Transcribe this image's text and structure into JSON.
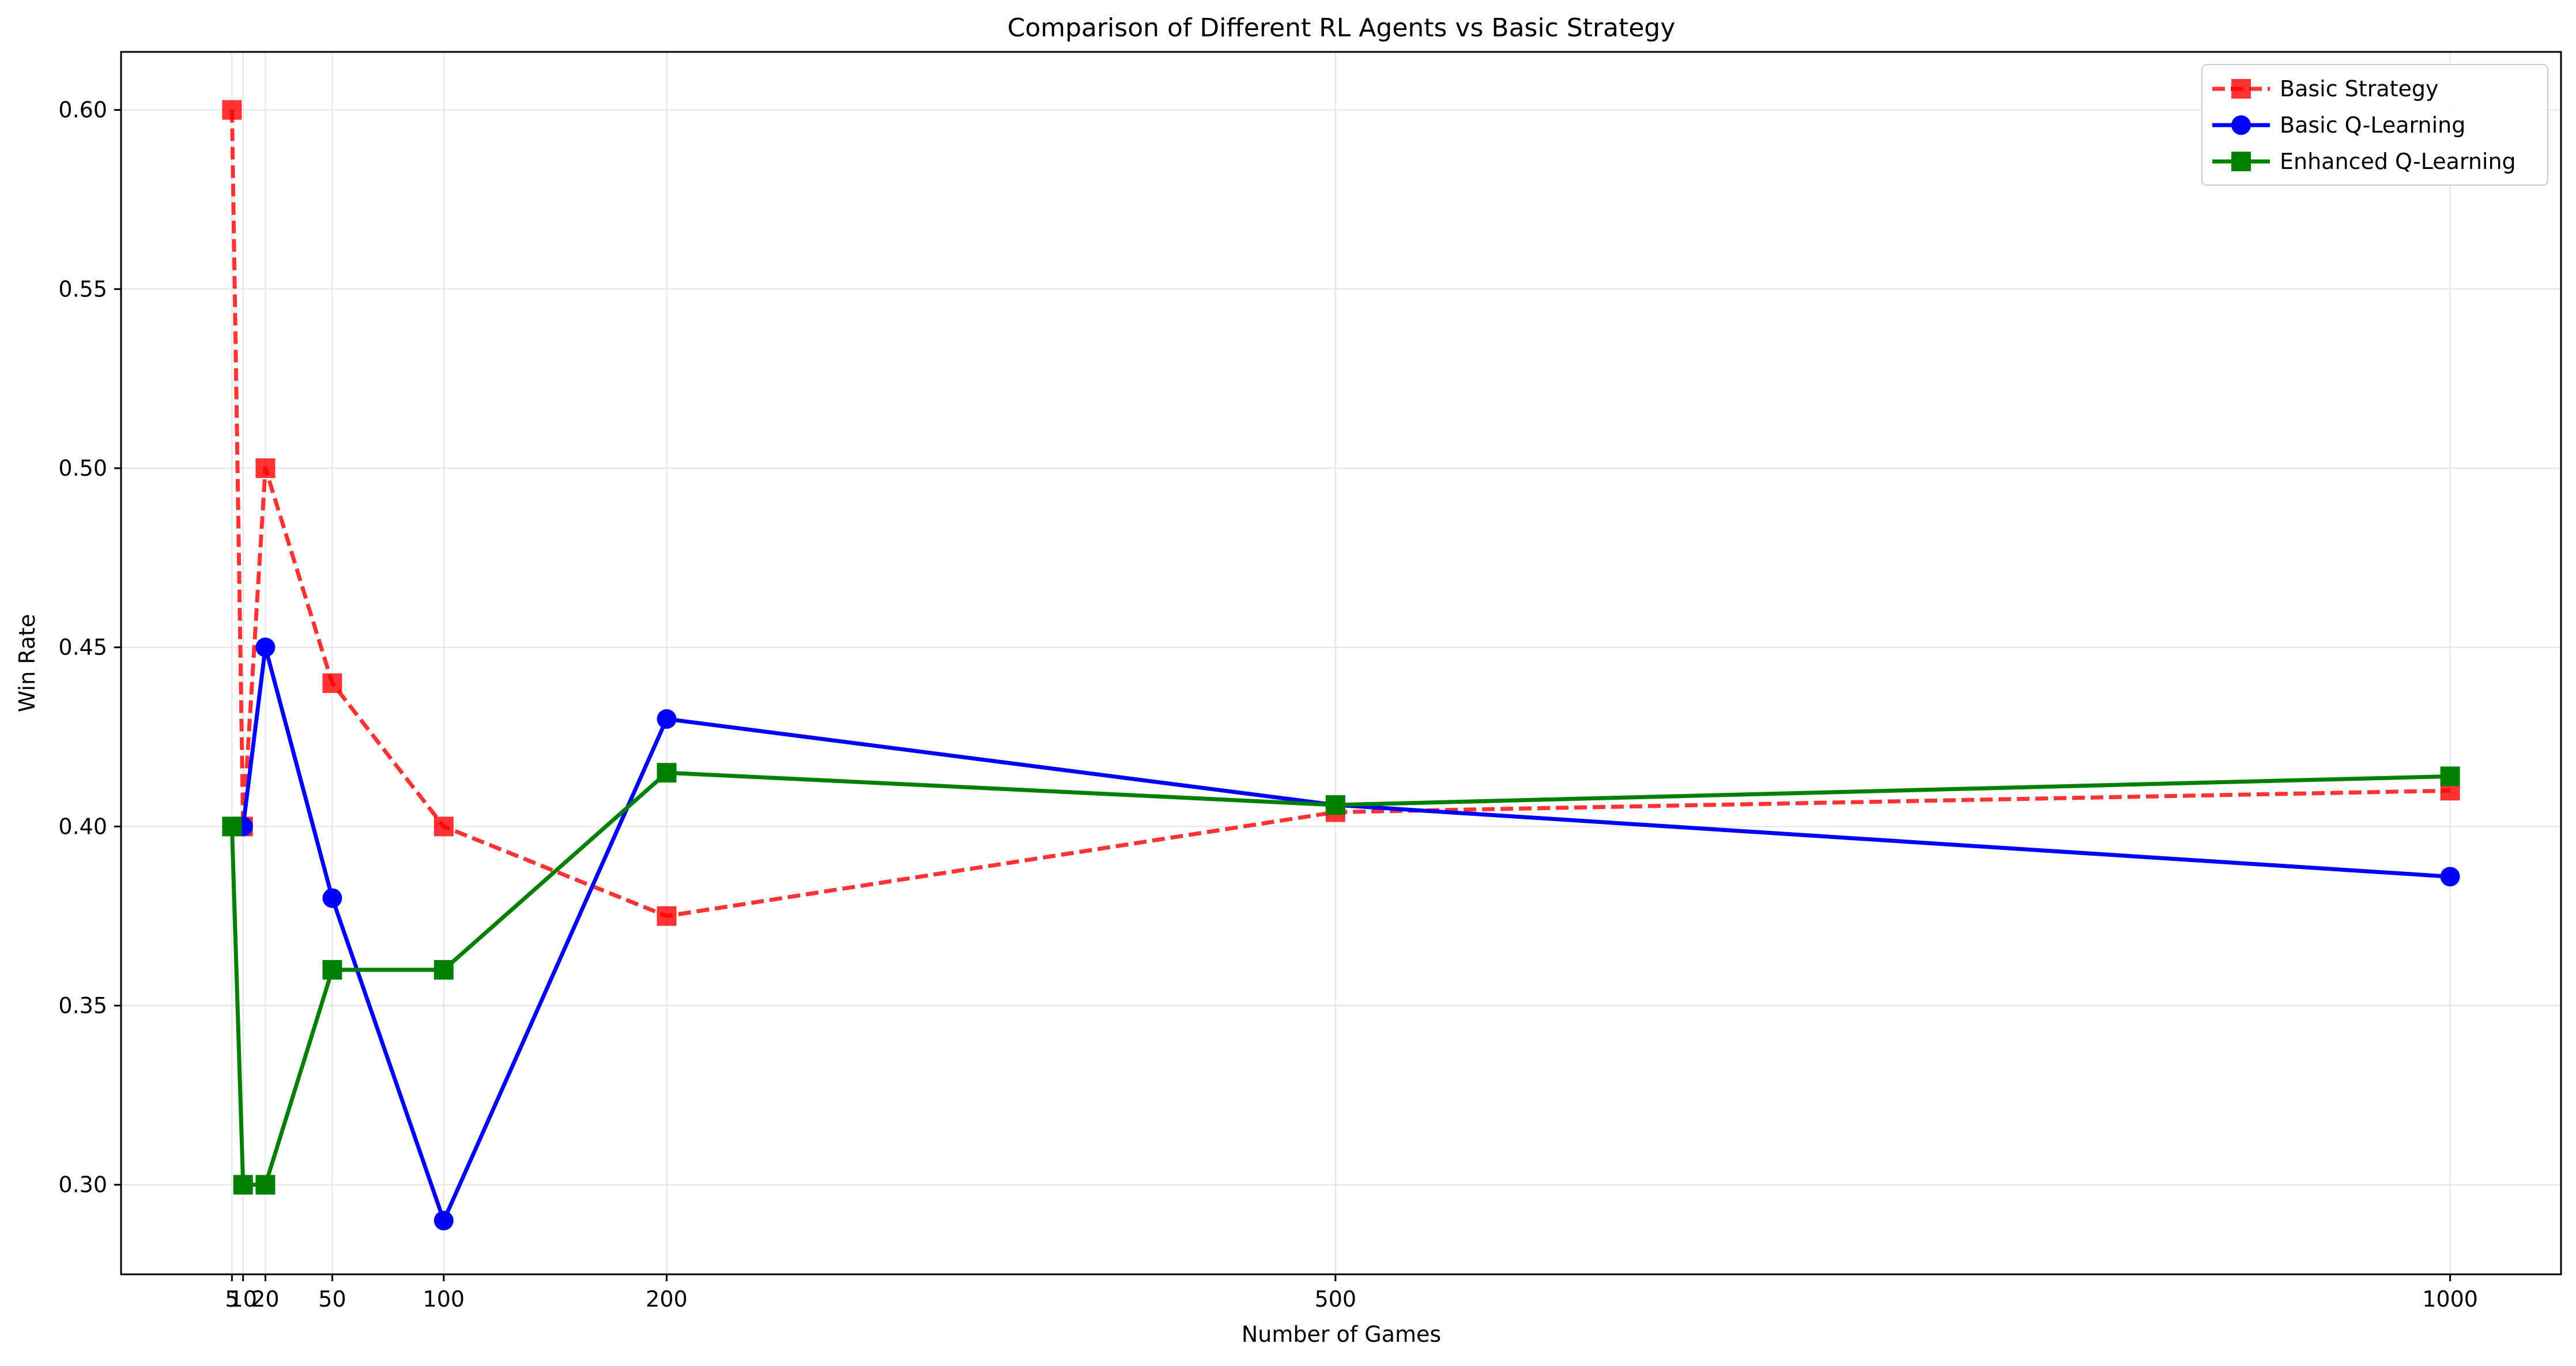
{
  "chart_data": {
    "type": "line",
    "title": "Comparison of Different RL Agents vs Basic Strategy",
    "xlabel": "Number of Games",
    "ylabel": "Win Rate",
    "x": [
      5,
      10,
      20,
      50,
      100,
      200,
      500,
      1000
    ],
    "x_ticks": [
      5,
      10,
      20,
      50,
      100,
      200,
      500,
      1000
    ],
    "x_tick_labels": [
      "5",
      "10",
      "20",
      "50",
      "100",
      "200",
      "500",
      "1000"
    ],
    "xlim": [
      -44.75,
      1049.75
    ],
    "ylim": [
      0.275,
      0.6162
    ],
    "y_ticks": [
      0.3,
      0.35,
      0.4,
      0.45,
      0.5,
      0.55,
      0.6
    ],
    "y_tick_labels": [
      "0.30",
      "0.35",
      "0.40",
      "0.45",
      "0.50",
      "0.55",
      "0.60"
    ],
    "grid": true,
    "legend_position": "top-right",
    "series": [
      {
        "name": "Basic Strategy",
        "values": [
          0.6,
          0.4,
          0.5,
          0.44,
          0.4,
          0.375,
          0.404,
          0.41
        ],
        "color": "#ff0000",
        "line_style": "dashed",
        "marker": "square",
        "opacity": 0.8
      },
      {
        "name": "Basic Q-Learning",
        "values": [
          0.4,
          0.4,
          0.45,
          0.38,
          0.29,
          0.43,
          0.406,
          0.386
        ],
        "color": "#0000ff",
        "line_style": "solid",
        "marker": "circle",
        "opacity": 1
      },
      {
        "name": "Enhanced Q-Learning",
        "values": [
          0.4,
          0.3,
          0.3,
          0.36,
          0.36,
          0.415,
          0.406,
          0.414
        ],
        "color": "#008000",
        "line_style": "solid",
        "marker": "square",
        "opacity": 1
      }
    ]
  }
}
